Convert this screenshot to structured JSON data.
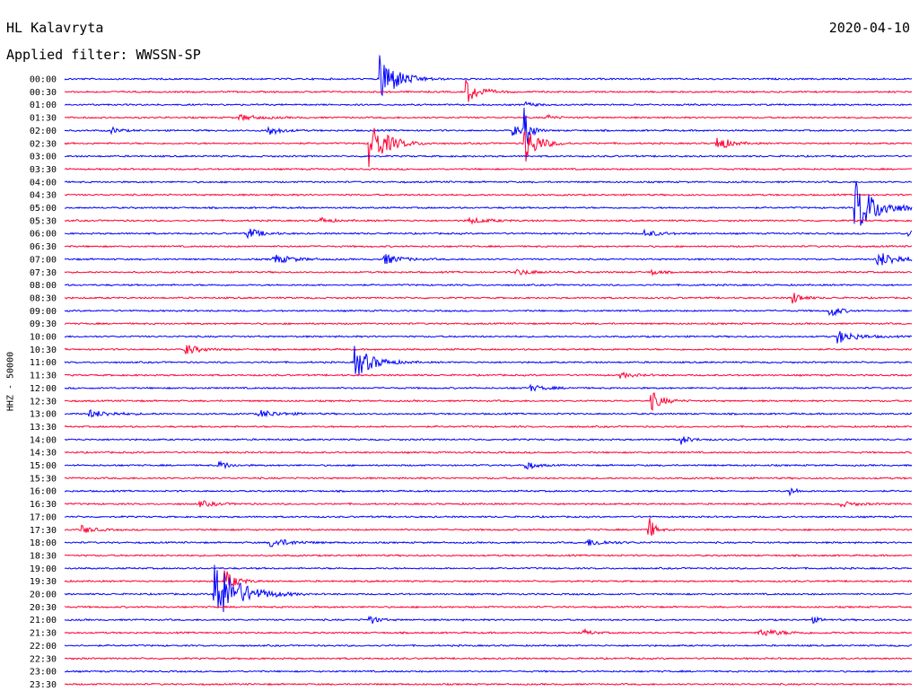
{
  "header": {
    "station": "HL Kalavryta",
    "date": "2020-04-10",
    "filter": "Applied filter: WWSSN-SP"
  },
  "chart_data": {
    "type": "line",
    "title": "HL Kalavryta",
    "subtitle": "Applied filter: WWSSN-SP",
    "ylabel": "HHZ - 50000",
    "xlabel": "",
    "grid": false,
    "legend": "none",
    "colors": [
      "#0000ff",
      "#ff0033"
    ],
    "rows": [
      "00:00",
      "00:30",
      "01:00",
      "01:30",
      "02:00",
      "02:30",
      "03:00",
      "03:30",
      "04:00",
      "04:30",
      "05:00",
      "05:30",
      "06:00",
      "06:30",
      "07:00",
      "07:30",
      "08:00",
      "08:30",
      "09:00",
      "09:30",
      "10:00",
      "10:30",
      "11:00",
      "11:30",
      "12:00",
      "12:30",
      "13:00",
      "13:30",
      "14:00",
      "14:30",
      "15:00",
      "15:30",
      "16:00",
      "16:30",
      "17:00",
      "17:30",
      "18:00",
      "18:30",
      "19:00",
      "19:30",
      "20:00",
      "20:30",
      "21:00",
      "21:30",
      "22:00",
      "22:30",
      "23:00",
      "23:30"
    ],
    "row_minutes": 30,
    "events": [
      {
        "row": 0,
        "minute": 11.2,
        "amplitude": 28,
        "duration": 1.5
      },
      {
        "row": 1,
        "minute": 14.2,
        "amplitude": 14,
        "duration": 1.2
      },
      {
        "row": 2,
        "minute": 16.3,
        "amplitude": 3,
        "duration": 0.8
      },
      {
        "row": 3,
        "minute": 6.2,
        "amplitude": 3,
        "duration": 1.8
      },
      {
        "row": 3,
        "minute": 17.1,
        "amplitude": 3,
        "duration": 0.7
      },
      {
        "row": 4,
        "minute": 1.7,
        "amplitude": 3,
        "duration": 0.8
      },
      {
        "row": 4,
        "minute": 7.2,
        "amplitude": 6,
        "duration": 1.0
      },
      {
        "row": 4,
        "minute": 15.9,
        "amplitude": 6,
        "duration": 0.9
      },
      {
        "row": 4,
        "minute": 16.3,
        "amplitude": 24,
        "duration": 0.5
      },
      {
        "row": 5,
        "minute": 10.8,
        "amplitude": 26,
        "duration": 1.6
      },
      {
        "row": 5,
        "minute": 16.3,
        "amplitude": 22,
        "duration": 1.2
      },
      {
        "row": 5,
        "minute": 23.1,
        "amplitude": 10,
        "duration": 1.0
      },
      {
        "row": 10,
        "minute": 28.0,
        "amplitude": 30,
        "duration": 2.0
      },
      {
        "row": 11,
        "minute": 9.1,
        "amplitude": 3,
        "duration": 1.0
      },
      {
        "row": 11,
        "minute": 14.3,
        "amplitude": 3,
        "duration": 2.0
      },
      {
        "row": 12,
        "minute": 6.5,
        "amplitude": 6,
        "duration": 1.2
      },
      {
        "row": 12,
        "minute": 20.5,
        "amplitude": 4,
        "duration": 1.4
      },
      {
        "row": 12,
        "minute": 29.9,
        "amplitude": 5,
        "duration": 0.8
      },
      {
        "row": 14,
        "minute": 7.4,
        "amplitude": 5,
        "duration": 1.8
      },
      {
        "row": 14,
        "minute": 11.3,
        "amplitude": 6,
        "duration": 1.5
      },
      {
        "row": 14,
        "minute": 28.8,
        "amplitude": 8,
        "duration": 2.2
      },
      {
        "row": 15,
        "minute": 16.0,
        "amplitude": 3,
        "duration": 1.8
      },
      {
        "row": 15,
        "minute": 20.8,
        "amplitude": 3,
        "duration": 0.8
      },
      {
        "row": 17,
        "minute": 25.8,
        "amplitude": 7,
        "duration": 0.8
      },
      {
        "row": 18,
        "minute": 27.1,
        "amplitude": 8,
        "duration": 0.8
      },
      {
        "row": 20,
        "minute": 27.4,
        "amplitude": 7,
        "duration": 1.6
      },
      {
        "row": 21,
        "minute": 4.3,
        "amplitude": 6,
        "duration": 1.2
      },
      {
        "row": 22,
        "minute": 10.3,
        "amplitude": 18,
        "duration": 1.6
      },
      {
        "row": 23,
        "minute": 19.7,
        "amplitude": 3,
        "duration": 1.2
      },
      {
        "row": 24,
        "minute": 16.5,
        "amplitude": 3,
        "duration": 1.6
      },
      {
        "row": 25,
        "minute": 20.8,
        "amplitude": 10,
        "duration": 1.0
      },
      {
        "row": 26,
        "minute": 0.9,
        "amplitude": 4,
        "duration": 2.0
      },
      {
        "row": 26,
        "minute": 6.9,
        "amplitude": 4,
        "duration": 1.8
      },
      {
        "row": 28,
        "minute": 21.8,
        "amplitude": 6,
        "duration": 0.8
      },
      {
        "row": 30,
        "minute": 5.5,
        "amplitude": 5,
        "duration": 0.8
      },
      {
        "row": 30,
        "minute": 16.3,
        "amplitude": 6,
        "duration": 0.8
      },
      {
        "row": 32,
        "minute": 25.7,
        "amplitude": 5,
        "duration": 0.6
      },
      {
        "row": 33,
        "minute": 4.8,
        "amplitude": 3,
        "duration": 1.6
      },
      {
        "row": 33,
        "minute": 27.4,
        "amplitude": 3,
        "duration": 1.6
      },
      {
        "row": 35,
        "minute": 0.6,
        "amplitude": 5,
        "duration": 1.0
      },
      {
        "row": 35,
        "minute": 20.7,
        "amplitude": 14,
        "duration": 0.5
      },
      {
        "row": 36,
        "minute": 7.3,
        "amplitude": 5,
        "duration": 1.8
      },
      {
        "row": 36,
        "minute": 18.5,
        "amplitude": 4,
        "duration": 1.8
      },
      {
        "row": 39,
        "minute": 5.7,
        "amplitude": 12,
        "duration": 1.0
      },
      {
        "row": 40,
        "minute": 5.3,
        "amplitude": 38,
        "duration": 2.2
      },
      {
        "row": 42,
        "minute": 10.8,
        "amplitude": 5,
        "duration": 0.8
      },
      {
        "row": 42,
        "minute": 26.5,
        "amplitude": 3,
        "duration": 0.8
      },
      {
        "row": 43,
        "minute": 24.6,
        "amplitude": 4,
        "duration": 2.2
      },
      {
        "row": 43,
        "minute": 18.4,
        "amplitude": 3,
        "duration": 0.8
      }
    ]
  }
}
